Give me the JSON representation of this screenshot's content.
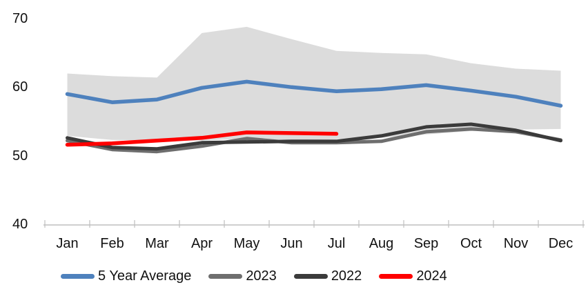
{
  "chart_data": {
    "type": "line",
    "title": "",
    "xlabel": "",
    "ylabel": "",
    "categories": [
      "Jan",
      "Feb",
      "Mar",
      "Apr",
      "May",
      "Jun",
      "Jul",
      "Aug",
      "Sep",
      "Oct",
      "Nov",
      "Dec"
    ],
    "ylim": [
      40,
      70
    ],
    "yticks": [
      40,
      50,
      60,
      70
    ],
    "grid": false,
    "legend_position": "bottom",
    "axis_color": "#BFBFBF",
    "band": {
      "name": "5-year-range",
      "color": "#DCDCDC",
      "upper": [
        62.0,
        61.6,
        61.4,
        67.9,
        68.8,
        67.0,
        65.3,
        65.0,
        64.8,
        63.5,
        62.7,
        62.4
      ],
      "lower": [
        52.9,
        52.3,
        52.2,
        52.2,
        52.5,
        52.3,
        52.4,
        52.6,
        53.1,
        53.6,
        53.8,
        53.9
      ]
    },
    "series": [
      {
        "name": "5 Year Average",
        "color": "#4E81BD",
        "width": 5.5,
        "values": [
          59.0,
          57.8,
          58.2,
          59.9,
          60.8,
          60.0,
          59.4,
          59.7,
          60.3,
          59.5,
          58.6,
          57.3
        ]
      },
      {
        "name": "2023",
        "color": "#6E6E6E",
        "width": 5,
        "values": [
          52.2,
          50.9,
          50.6,
          51.4,
          52.5,
          51.9,
          51.9,
          52.1,
          53.5,
          53.9,
          53.5,
          52.3
        ]
      },
      {
        "name": "2022",
        "color": "#3B3B3B",
        "width": 5,
        "values": [
          52.6,
          51.2,
          51.0,
          51.9,
          52.0,
          52.1,
          52.1,
          52.9,
          54.2,
          54.6,
          53.7,
          52.2
        ]
      },
      {
        "name": "2024",
        "color": "#FF0000",
        "width": 5.5,
        "values": [
          51.6,
          51.8,
          52.2,
          52.6,
          53.4,
          53.3,
          53.2,
          null,
          null,
          null,
          null,
          null
        ]
      }
    ]
  }
}
